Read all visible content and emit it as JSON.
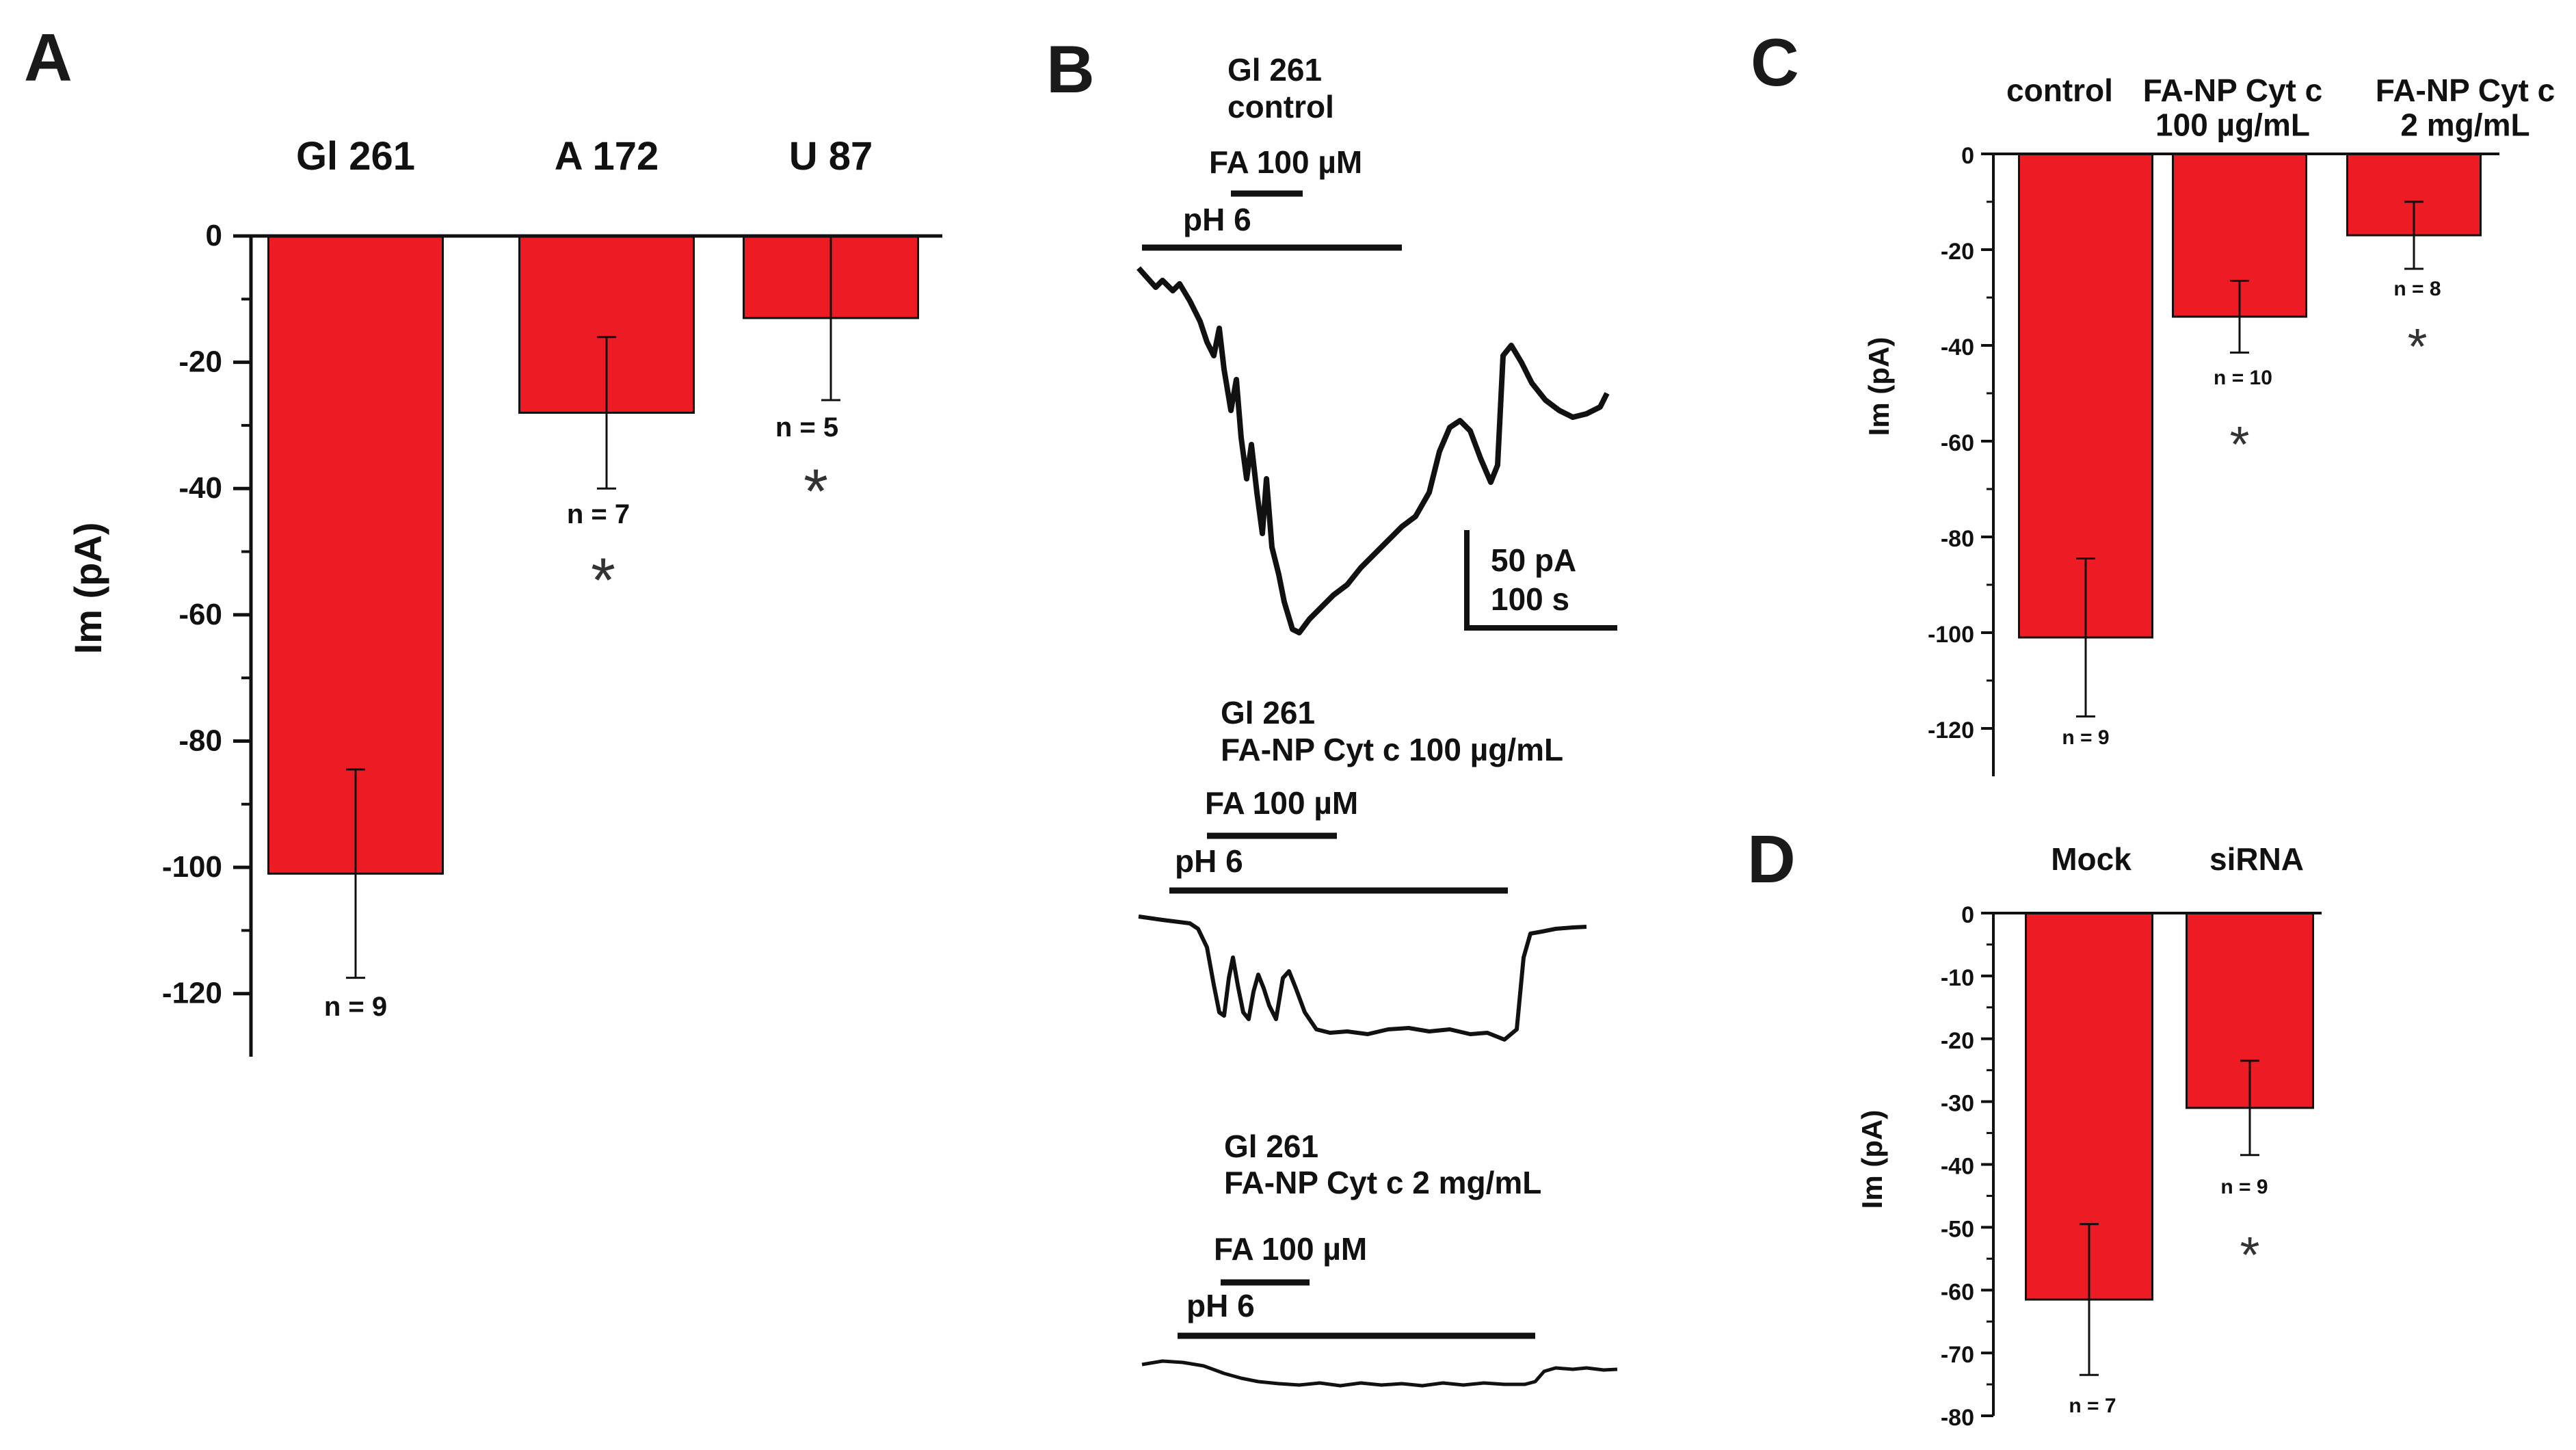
{
  "panels": {
    "A": "A",
    "B": "B",
    "C": "C",
    "D": "D"
  },
  "colors": {
    "bar": "#ed1c24",
    "ink": "#111111"
  },
  "chart_data": [
    {
      "id": "A",
      "type": "bar",
      "categories": [
        "Gl 261",
        "A 172",
        "U 87"
      ],
      "values": [
        -101,
        -28,
        -13
      ],
      "errors": [
        16.5,
        12,
        13
      ],
      "n_labels": [
        "n = 9",
        "n = 7",
        "n = 5"
      ],
      "significance": [
        "",
        "*",
        "*"
      ],
      "ylabel": "Im (pA)",
      "ylim": [
        -130,
        0
      ],
      "yticks": [
        0,
        -20,
        -40,
        -60,
        -80,
        -100,
        -120
      ]
    },
    {
      "id": "C",
      "type": "bar",
      "categories": [
        "control",
        "FA-NP Cyt c\n100 µg/mL",
        "FA-NP Cyt c\n2 mg/mL"
      ],
      "values": [
        -101,
        -34,
        -17
      ],
      "errors": [
        16.5,
        7.5,
        7
      ],
      "n_labels": [
        "n = 9",
        "n = 10",
        "n = 8"
      ],
      "significance": [
        "",
        "*",
        "*"
      ],
      "ylabel": "Im (pA)",
      "ylim": [
        -130,
        0
      ],
      "yticks": [
        0,
        -20,
        -40,
        -60,
        -80,
        -100,
        -120
      ]
    },
    {
      "id": "D",
      "type": "bar",
      "categories": [
        "Mock",
        "siRNA"
      ],
      "values": [
        -61.5,
        -31
      ],
      "errors": [
        12,
        7.5
      ],
      "n_labels": [
        "n = 7",
        "n = 9"
      ],
      "significance": [
        "",
        "*"
      ],
      "ylabel": "Im (pA)",
      "ylim": [
        -80,
        0
      ],
      "yticks": [
        0,
        -10,
        -20,
        -30,
        -40,
        -50,
        -60,
        -70,
        -80
      ]
    }
  ],
  "traces": {
    "control": {
      "title_line1": "Gl 261",
      "title_line2": "control",
      "fa": "FA 100 µM",
      "ph": "pH 6",
      "scale_current": "50 pA",
      "scale_time": "100 s"
    },
    "np100": {
      "title_line1": "Gl 261",
      "title_line2": "FA-NP Cyt c 100 µg/mL",
      "fa": "FA 100 µM",
      "ph": "pH 6"
    },
    "np2": {
      "title_line1": "Gl 261",
      "title_line2": "FA-NP Cyt c 2 mg/mL",
      "fa": "FA 100 µM",
      "ph": "pH 6"
    }
  }
}
